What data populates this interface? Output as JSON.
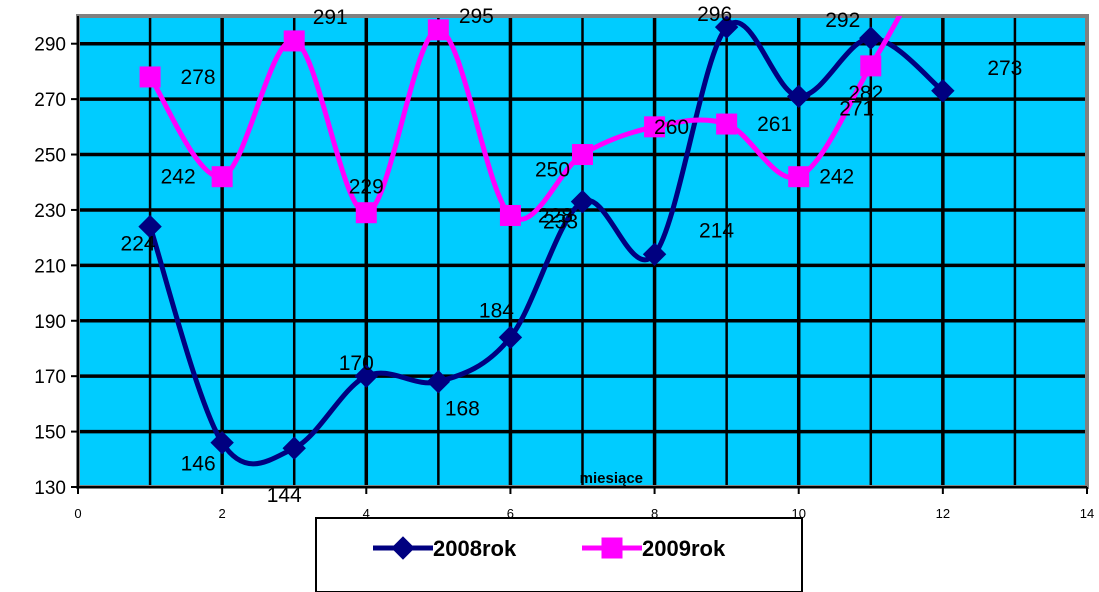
{
  "chart_data": {
    "type": "line",
    "xlabel": "miesiące",
    "ylabel": "",
    "xlim": [
      0,
      14
    ],
    "ylim": [
      130,
      300
    ],
    "x_ticks": [
      0,
      2,
      4,
      6,
      8,
      10,
      12,
      14
    ],
    "y_ticks": [
      130,
      150,
      170,
      190,
      210,
      230,
      250,
      270,
      290
    ],
    "plot_background": "#00CCFF",
    "grid": true,
    "legend_position": "bottom",
    "series": [
      {
        "name": "2008rok",
        "color": "#000080",
        "marker": "diamond",
        "x": [
          1,
          2,
          3,
          4,
          5,
          6,
          7,
          8,
          9,
          10,
          11,
          12
        ],
        "values": [
          224,
          146,
          144,
          170,
          168,
          184,
          233,
          214,
          296,
          271,
          292,
          273
        ],
        "labels": [
          "224",
          "146",
          "144",
          "170",
          "168",
          "184",
          "233",
          "214",
          "296",
          "271",
          "292",
          "273"
        ]
      },
      {
        "name": "2009rok",
        "color": "#FF00FF",
        "marker": "square",
        "x": [
          1,
          2,
          3,
          4,
          5,
          6,
          7,
          8,
          9,
          10,
          11
        ],
        "values": [
          278,
          242,
          291,
          229,
          295,
          228,
          250,
          260,
          261,
          242,
          282
        ],
        "labels": [
          "278",
          "242",
          "291",
          "229",
          "295",
          "228",
          "250",
          "260",
          "261",
          "242",
          "282"
        ]
      }
    ]
  }
}
